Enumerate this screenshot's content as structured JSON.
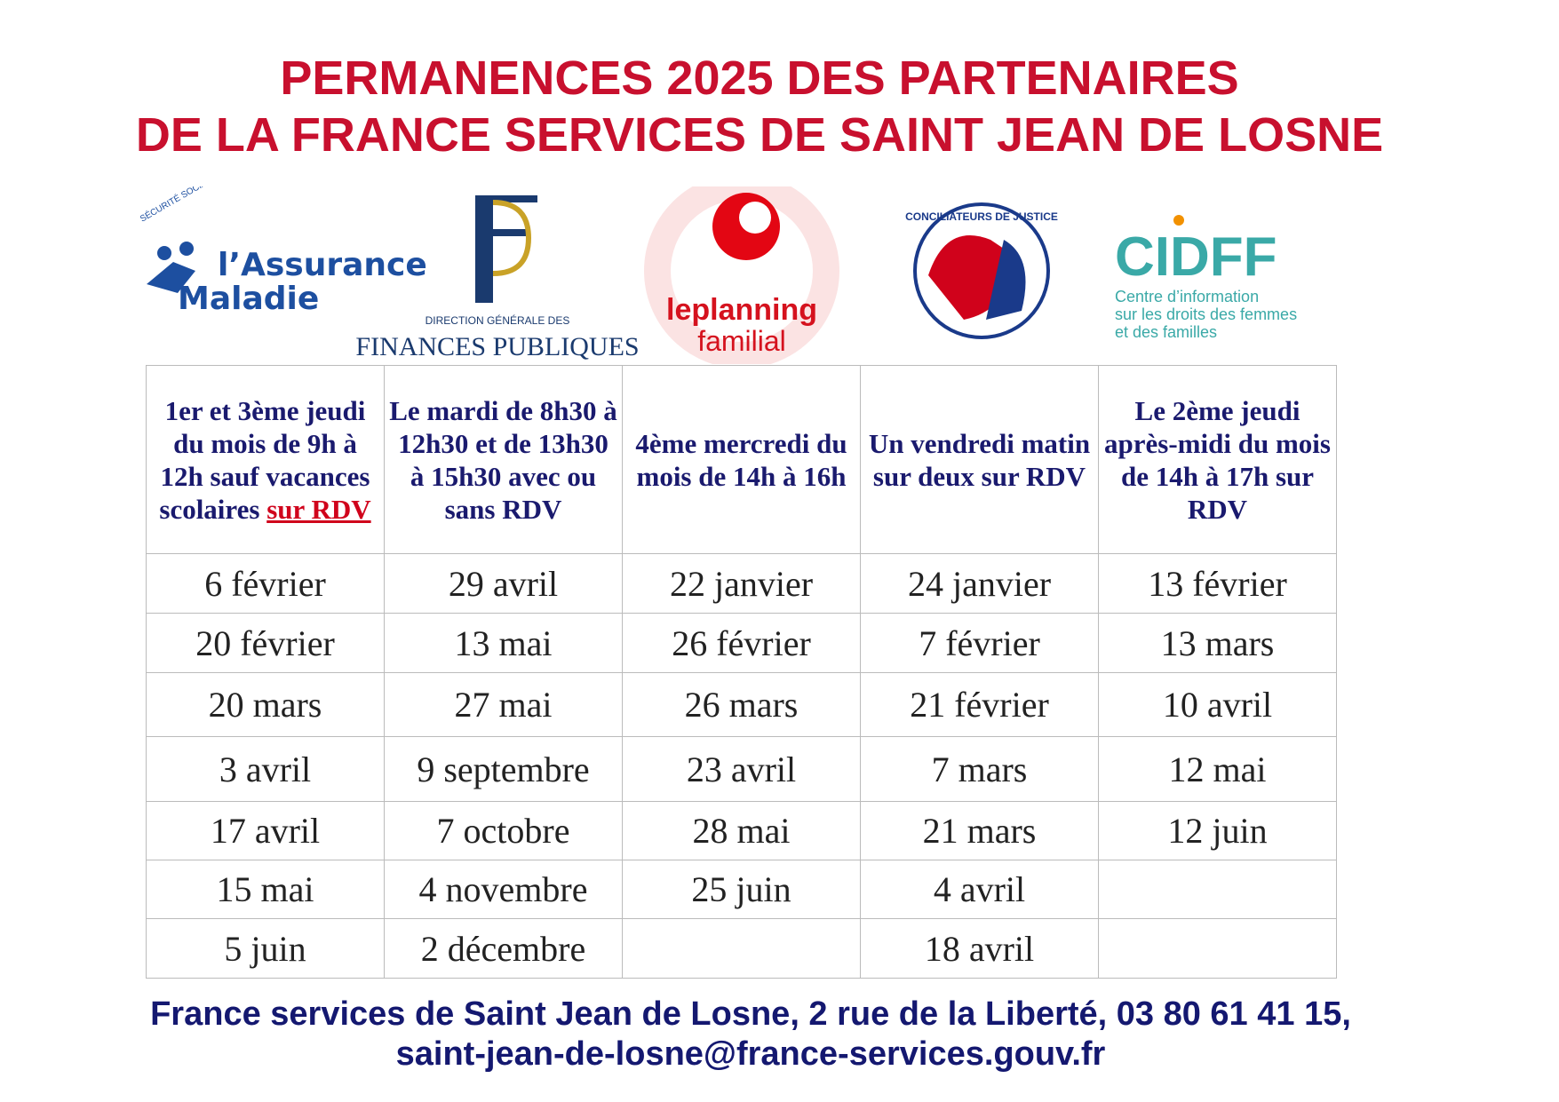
{
  "header": {
    "title_line1": "PERMANENCES 2025 DES PARTENAIRES",
    "title_line2": "DE LA FRANCE SERVICES DE SAINT JEAN DE LOSNE"
  },
  "logos": [
    {
      "top": "SÉCURITÉ SOCIALE",
      "line1": "l’Assurance",
      "line2": "Maladie"
    },
    {
      "line1": "DIRECTION GÉNÉRALE DES",
      "line2": "FINANCES PUBLIQUES"
    },
    {
      "line1": "leplanning",
      "line2": "familial"
    },
    {
      "line1": "CONCILIATEURS DE JUSTICE"
    },
    {
      "line1": "CIDFF",
      "line2": "Centre d’information",
      "line3": "sur les droits des femmes",
      "line4": "et des familles"
    }
  ],
  "table": {
    "header": [
      {
        "text": "1er et 3ème jeudi du mois de 9h à 12h sauf vacances scolaires",
        "emphasis": "sur RDV"
      },
      {
        "text": "Le mardi de 8h30 à 12h30 et de 13h30 à 15h30 avec ou sans RDV"
      },
      {
        "text": "4ème mercredi du mois de 14h à 16h"
      },
      {
        "text": "Un vendredi matin sur deux sur RDV"
      },
      {
        "text": "Le 2ème jeudi après-midi du mois de 14h à 17h sur RDV"
      }
    ],
    "rows": [
      [
        "6 février",
        "29 avril",
        "22 janvier",
        "24 janvier",
        "13 février"
      ],
      [
        "20 février",
        "13 mai",
        "26 février",
        "7 février",
        "13 mars"
      ],
      [
        "20 mars",
        "27 mai",
        "26 mars",
        "21 février",
        "10 avril"
      ],
      [
        "3 avril",
        "9 septembre",
        "23 avril",
        "7 mars",
        "12 mai"
      ],
      [
        "17 avril",
        "7 octobre",
        "28 mai",
        "21 mars",
        "12 juin"
      ],
      [
        "15 mai",
        "4 novembre",
        "25 juin",
        "4 avril",
        null
      ],
      [
        "5 juin",
        "2 décembre",
        null,
        "18 avril",
        null
      ]
    ]
  },
  "footer": {
    "line1": "France services de Saint Jean de Losne, 2 rue de la Liberté, 03 80 61 41 15,",
    "line2": "saint-jean-de-losne@france-services.gouv.fr"
  }
}
